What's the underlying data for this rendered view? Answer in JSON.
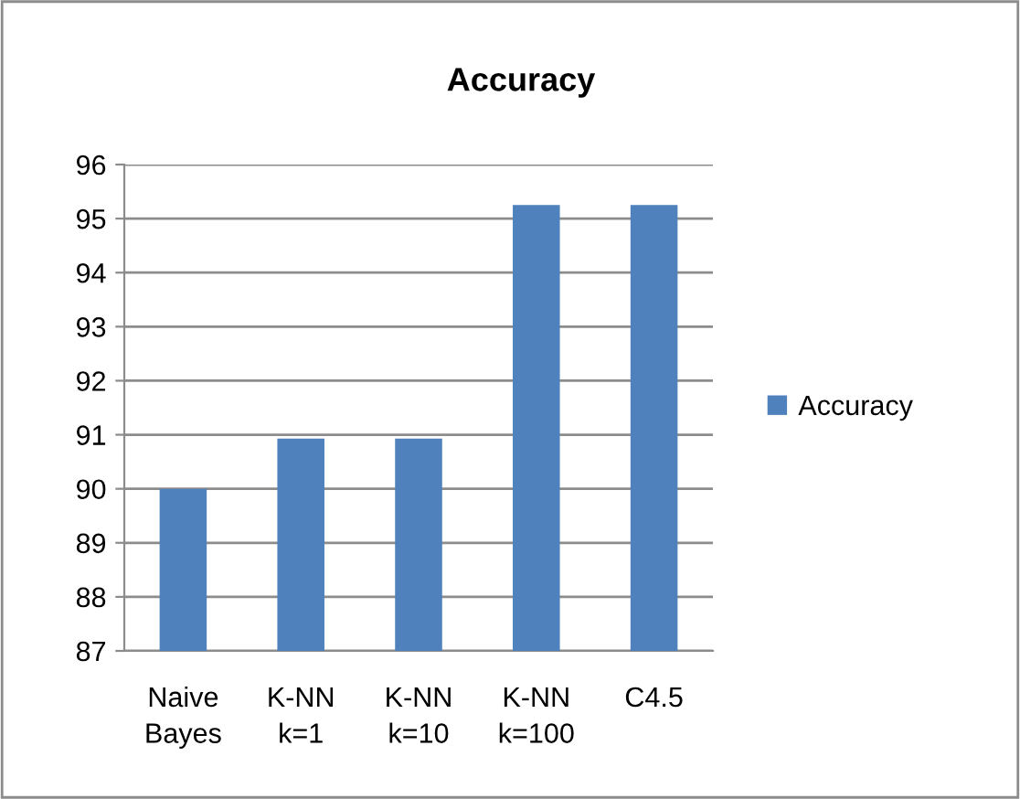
{
  "chart_data": {
    "type": "bar",
    "title": "Accuracy",
    "categories": [
      "Naive\nBayes",
      "K-NN\nk=1",
      "K-NN\nk=10",
      "K-NN\nk=100",
      "C4.5"
    ],
    "series": [
      {
        "name": "Accuracy",
        "color": "#4f81bd",
        "values": [
          90.0,
          90.93,
          90.93,
          95.25,
          95.25
        ]
      }
    ],
    "ylim": [
      87,
      96
    ],
    "yticks": [
      87,
      88,
      89,
      90,
      91,
      92,
      93,
      94,
      95,
      96
    ],
    "grid": "y",
    "legend": "right"
  }
}
